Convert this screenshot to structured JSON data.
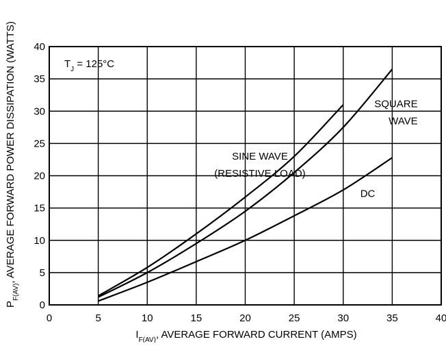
{
  "chart_data": {
    "type": "line",
    "title": "",
    "xlabel_main": "I",
    "xlabel_sub": "F(AV)",
    "xlabel_rest": ", AVERAGE FORWARD CURRENT (AMPS)",
    "ylabel_main": "P",
    "ylabel_sub": "F(AV)",
    "ylabel_rest": ", AVERAGE FORWARD POWER DISSIPATION (WATTS)",
    "xlim": [
      0,
      40
    ],
    "ylim": [
      0,
      40
    ],
    "xticks": [
      0,
      5,
      10,
      15,
      20,
      25,
      30,
      35,
      40
    ],
    "yticks": [
      0,
      5,
      10,
      15,
      20,
      25,
      30,
      35,
      40
    ],
    "grid": true,
    "condition": {
      "main": "T",
      "sub": "J",
      "rest": " = 125°C"
    },
    "series": [
      {
        "name": "SINE WAVE (RESISTIVE LOAD)",
        "x": [
          5,
          10,
          15,
          20,
          25,
          30
        ],
        "y": [
          1.4,
          5.8,
          11.0,
          16.7,
          23.0,
          31.0
        ]
      },
      {
        "name": "SQUARE WAVE",
        "x": [
          5,
          10,
          15,
          20,
          25,
          30,
          35
        ],
        "y": [
          1.2,
          5.0,
          9.5,
          14.5,
          20.5,
          27.5,
          36.5
        ]
      },
      {
        "name": "DC",
        "x": [
          5,
          10,
          15,
          20,
          25,
          30,
          35
        ],
        "y": [
          0.6,
          3.5,
          6.7,
          10.0,
          13.8,
          17.8,
          22.8
        ]
      }
    ],
    "annotations": [
      {
        "lines": [
          "SINE WAVE",
          "(RESISTIVE LOAD)"
        ],
        "at": [
          21.5,
          22.5
        ],
        "anchor": "middle"
      },
      {
        "lines": [
          "SQUARE",
          "WAVE"
        ],
        "at": [
          37.6,
          30.6
        ],
        "anchor": "end"
      },
      {
        "lines": [
          "DC"
        ],
        "at": [
          32.5,
          16.7
        ],
        "anchor": "middle"
      }
    ]
  }
}
